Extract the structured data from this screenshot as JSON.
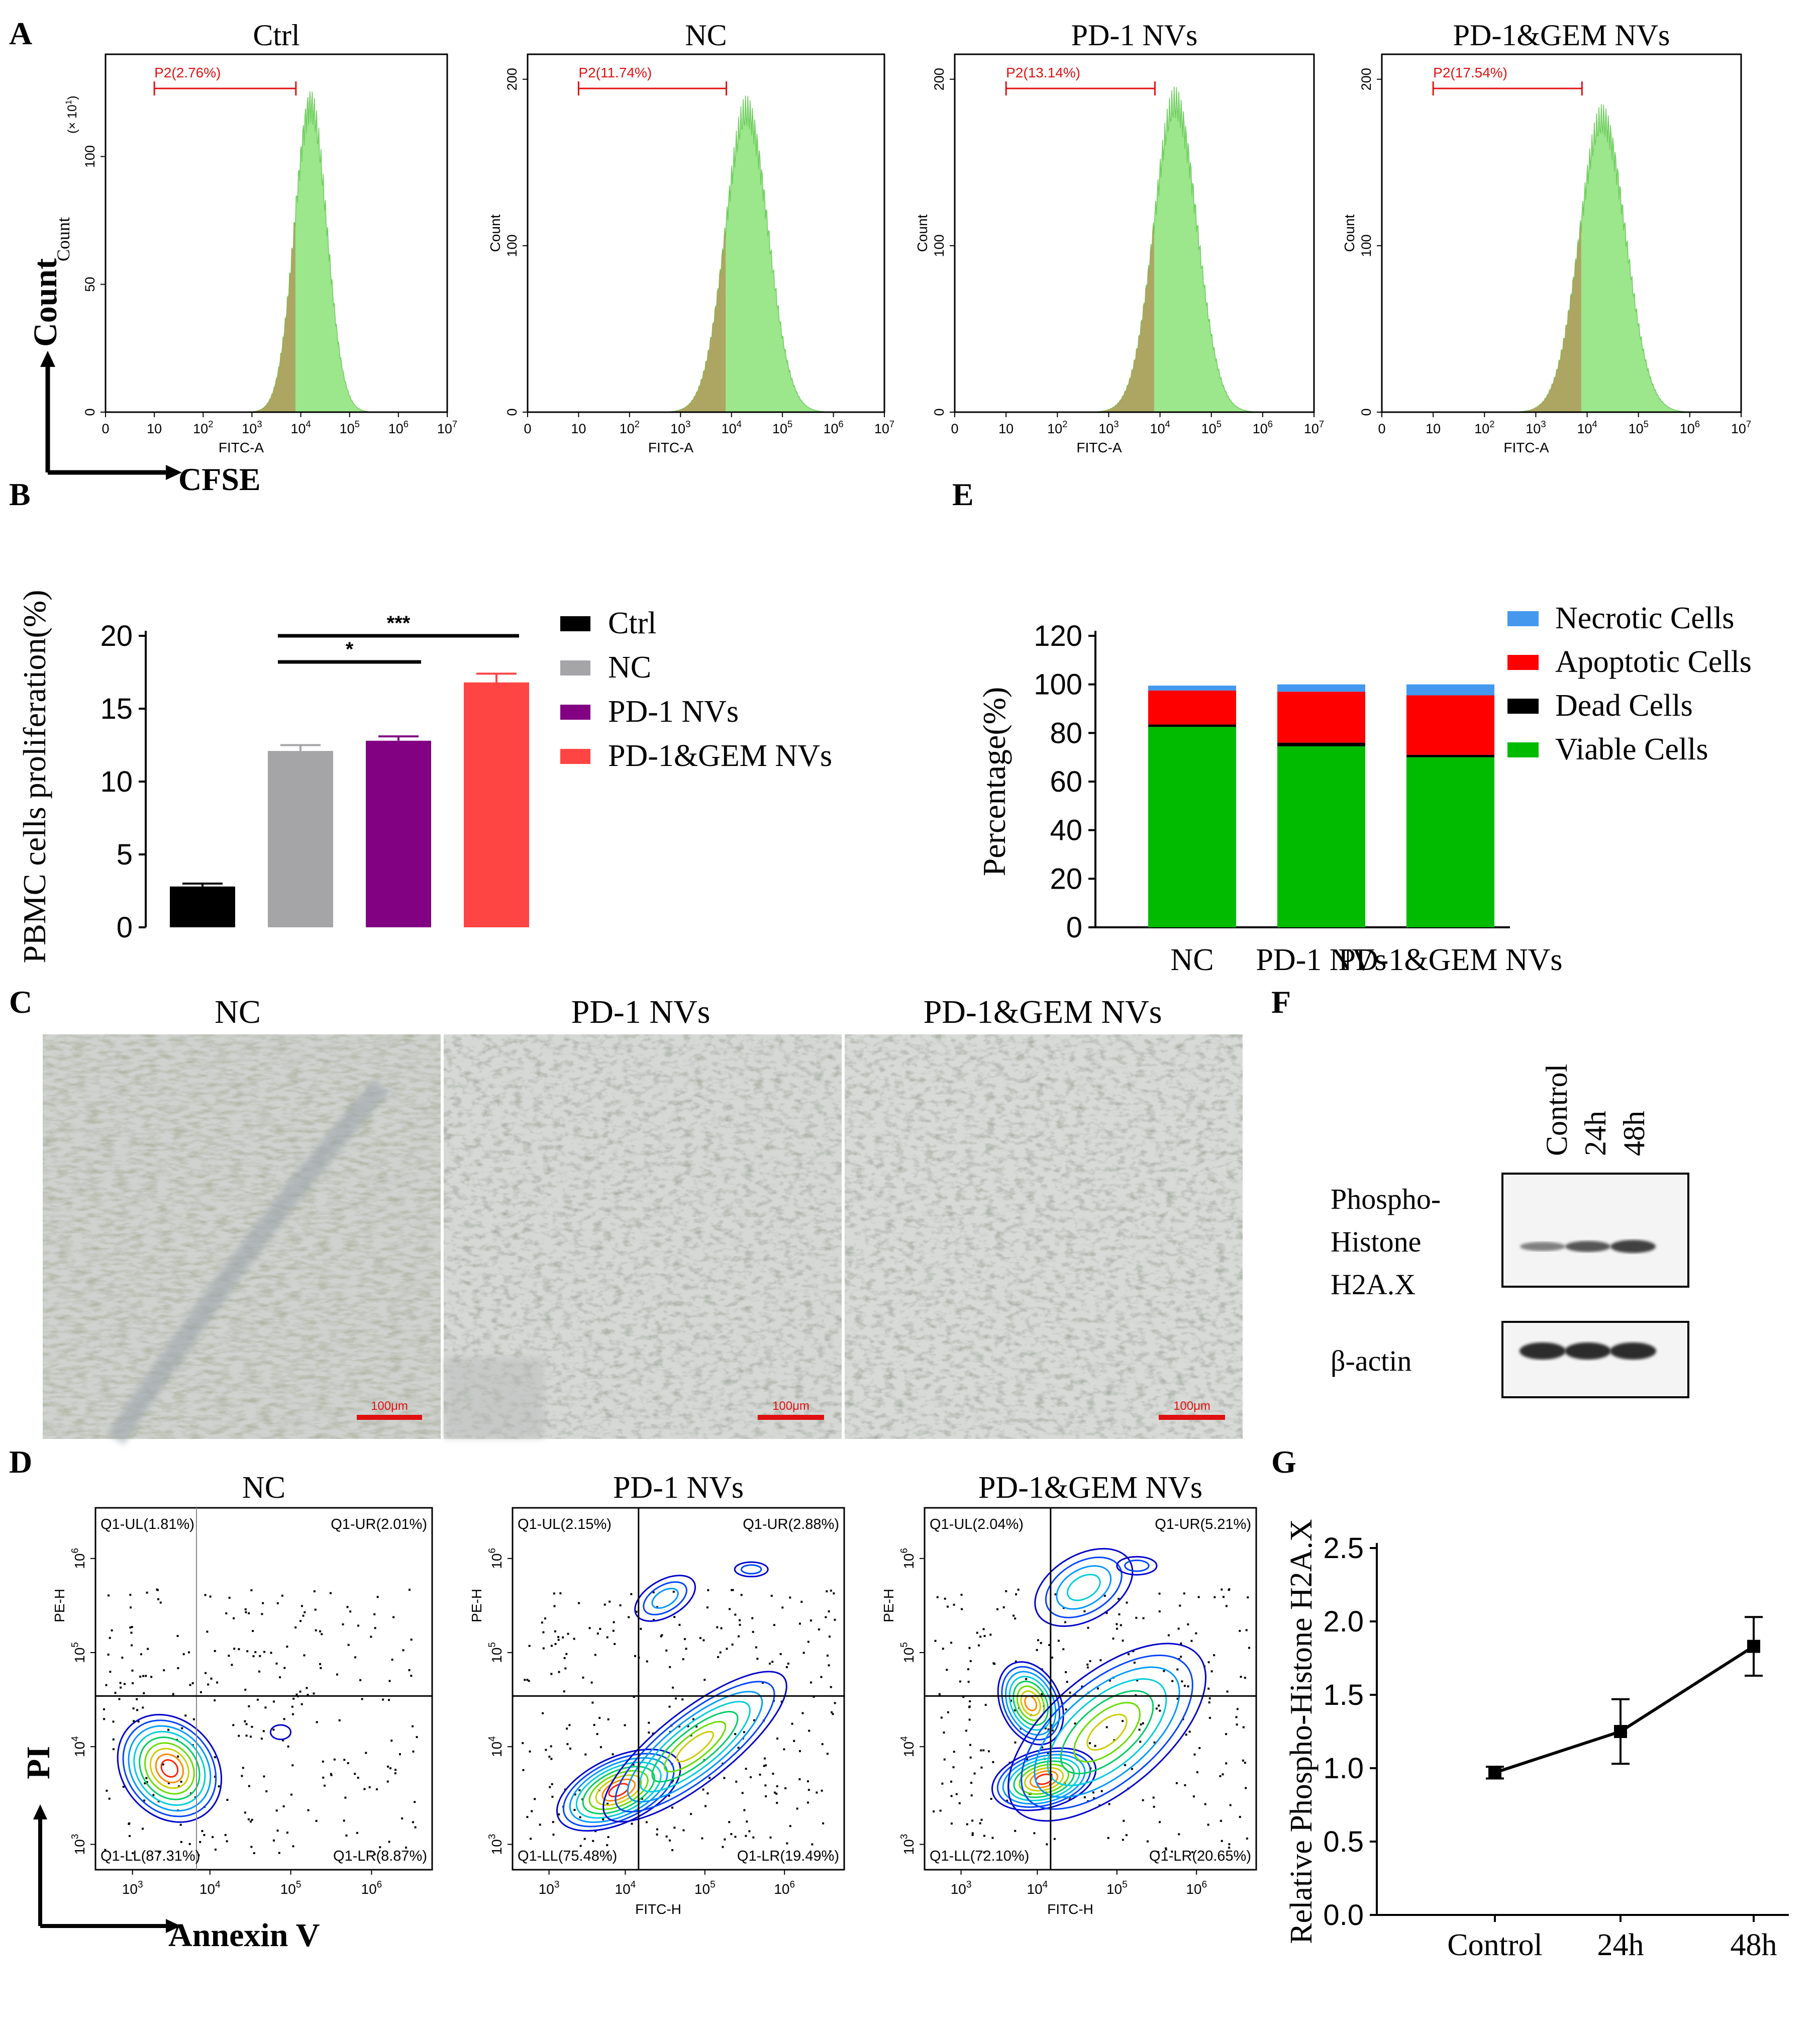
{
  "panel_letters": {
    "A": "A",
    "B": "B",
    "C": "C",
    "D": "D",
    "E": "E",
    "F": "F",
    "G": "G"
  },
  "axis_titles": {
    "count_main": "Count",
    "count_sub": "Count",
    "count_small": "Count",
    "cfse": "CFSE",
    "fitc_a": "FITC-A",
    "pi": "PI",
    "annexin": "Annexin V",
    "fitc_h": "FITC-H",
    "pe_h": "PE-H",
    "x10": "(× 10",
    "x10_exp": "1",
    "x10_close": ")"
  },
  "panel_c": {
    "titles": [
      "NC",
      "PD-1 NVs",
      "PD-1&GEM NVs"
    ],
    "scale_bar": "100μm"
  },
  "panel_f": {
    "lanes": [
      "Control",
      "24h",
      "48h"
    ],
    "row1": [
      "Phospho-",
      "Histone",
      "H2A.X"
    ],
    "row2": "β-actin",
    "band_colors": {
      "dark": "#202020",
      "light": "#f2f2f2"
    }
  },
  "chart_data": [
    {
      "id": "A",
      "type": "histogram",
      "x_axis_label": "FITC-A",
      "x_ticks": [
        "0",
        "10",
        "10^2",
        "10^3",
        "10^4",
        "10^5",
        "10^6",
        "10^7"
      ],
      "panels": [
        {
          "title": "Ctrl",
          "gate": "P2(2.76%)",
          "y_ticks": [
            "0",
            "50",
            "100"
          ],
          "y_scale": "x10^1",
          "peak_log": 4.2,
          "peak_height": 120,
          "ymax": 140,
          "width": 0.33,
          "gate_range": [
            1,
            3.9
          ]
        },
        {
          "title": "NC",
          "gate": "P2(11.74%)",
          "y_ticks": [
            "0",
            "100",
            "200"
          ],
          "peak_log": 4.3,
          "peak_height": 180,
          "ymax": 215,
          "width": 0.42,
          "gate_range": [
            1,
            3.9
          ]
        },
        {
          "title": "PD-1 NVs",
          "gate": "P2(13.14%)",
          "y_ticks": [
            "0",
            "100",
            "200"
          ],
          "peak_log": 4.3,
          "peak_height": 185,
          "ymax": 215,
          "width": 0.42,
          "gate_range": [
            1,
            3.9
          ]
        },
        {
          "title": "PD-1&GEM NVs",
          "gate": "P2(17.54%)",
          "y_ticks": [
            "0",
            "100",
            "200"
          ],
          "peak_log": 4.3,
          "peak_height": 175,
          "ymax": 215,
          "width": 0.45,
          "gate_range": [
            1,
            3.9
          ]
        }
      ],
      "colors": {
        "fill": "#9ce68c",
        "gated": "#b09a5a",
        "gate": "#e01010"
      }
    },
    {
      "id": "B",
      "type": "bar",
      "ylabel": "PBMC cells proliferation(%)",
      "categories": [
        "Ctrl",
        "NC",
        "PD-1 NVs",
        "PD-1&GEM NVs"
      ],
      "values": [
        2.8,
        12.1,
        12.8,
        16.8
      ],
      "errors": [
        0.2,
        0.4,
        0.3,
        0.6
      ],
      "colors": [
        "#000000",
        "#a5a5a8",
        "#820082",
        "#ff4444"
      ],
      "ylim": [
        0,
        20
      ],
      "yticks": [
        "0",
        "5",
        "10",
        "15",
        "20"
      ],
      "legend": [
        "Ctrl",
        "NC",
        "PD-1 NVs",
        "PD-1&GEM NVs"
      ],
      "significance": [
        {
          "from": 1,
          "to": 2,
          "label": "*"
        },
        {
          "from": 1,
          "to": 3,
          "label": "***"
        }
      ]
    },
    {
      "id": "E",
      "type": "bar",
      "stacked": true,
      "ylabel": "Percentage(%)",
      "categories": [
        "NC",
        "PD-1 NVs",
        "PD-1&GEM NVs"
      ],
      "series": [
        {
          "name": "Viable Cells",
          "values": [
            82.5,
            74.5,
            70.0
          ],
          "color": "#00bb00"
        },
        {
          "name": "Dead Cells",
          "values": [
            1.0,
            1.5,
            1.0
          ],
          "color": "#000000"
        },
        {
          "name": "Apoptotic Cells",
          "values": [
            14.0,
            21.0,
            24.5
          ],
          "color": "#ff0000"
        },
        {
          "name": "Necrotic Cells",
          "values": [
            2.0,
            3.0,
            4.5
          ],
          "color": "#4499ee"
        }
      ],
      "ylim": [
        0,
        120
      ],
      "yticks": [
        "0",
        "20",
        "40",
        "60",
        "80",
        "100",
        "120"
      ],
      "legend_order": [
        "Necrotic Cells",
        "Apoptotic Cells",
        "Dead Cells",
        "Viable Cells"
      ]
    },
    {
      "id": "D",
      "type": "scatter",
      "x_axis_label": "FITC-H",
      "y_axis_label": "PE-H",
      "x_ticks": [
        "10^3",
        "10^4",
        "10^5",
        "10^6"
      ],
      "y_ticks": [
        "10^3",
        "10^4",
        "10^5",
        "10^6"
      ],
      "panels": [
        {
          "title": "NC",
          "UL": "Q1-UL(1.81%)",
          "UR": "Q1-UR(2.01%)",
          "LL": "Q1-LL(87.31%)",
          "LR": "Q1-LR(8.87%)"
        },
        {
          "title": "PD-1 NVs",
          "UL": "Q1-UL(2.15%)",
          "UR": "Q1-UR(2.88%)",
          "LL": "Q1-LL(75.48%)",
          "LR": "Q1-LR(19.49%)"
        },
        {
          "title": "PD-1&GEM NVs",
          "UL": "Q1-UL(2.04%)",
          "UR": "Q1-UR(5.21%)",
          "LL": "Q1-LL(72.10%)",
          "LR": "Q1-LR(20.65%)"
        }
      ]
    },
    {
      "id": "G",
      "type": "line",
      "ylabel": "Relative Phospho-Histone H2A.X",
      "categories": [
        "Control",
        "24h",
        "48h"
      ],
      "values": [
        0.97,
        1.25,
        1.83
      ],
      "errors": [
        0.04,
        0.22,
        0.2
      ],
      "ylim": [
        0,
        2.5
      ],
      "yticks": [
        "0.0",
        "0.5",
        "1.0",
        "1.5",
        "2.0",
        "2.5"
      ]
    }
  ]
}
